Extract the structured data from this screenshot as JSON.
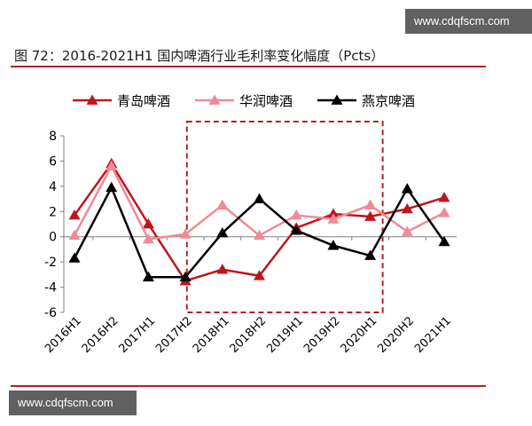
{
  "watermark_top": "www.cdqfscm.com",
  "watermark_bottom": "www.cdqfscm.com",
  "title": "图 72：2016-2021H1 国内啤酒行业毛利率变化幅度（Pcts）",
  "colors": {
    "series_1": "#c0141c",
    "series_2": "#f08a94",
    "series_3": "#000000",
    "accent_rule": "#b22222",
    "highlight_box": "#b22222"
  },
  "chart_data": {
    "type": "line",
    "title": "",
    "xlabel": "",
    "ylabel": "",
    "categories": [
      "2016H1",
      "2016H2",
      "2017H1",
      "2017H2",
      "2018H1",
      "2018H2",
      "2019H1",
      "2019H2",
      "2020H1",
      "2020H2",
      "2021H1"
    ],
    "ylim": [
      -6,
      8
    ],
    "yticks": [
      "8",
      "6",
      "4",
      "2",
      "0",
      "-2",
      "-4",
      "-6"
    ],
    "grid": false,
    "legend": "top",
    "highlight_range": [
      "2018H1",
      "2020H1"
    ],
    "series": [
      {
        "name": "青岛啤酒",
        "values": [
          1.7,
          5.8,
          1.0,
          -3.5,
          -2.6,
          -3.1,
          0.7,
          1.8,
          1.6,
          2.2,
          3.1
        ]
      },
      {
        "name": "华润啤酒",
        "values": [
          0.1,
          5.6,
          -0.2,
          0.2,
          2.5,
          0.1,
          1.7,
          1.4,
          2.5,
          0.4,
          1.9
        ]
      },
      {
        "name": "燕京啤酒",
        "values": [
          -1.7,
          3.9,
          -3.2,
          -3.2,
          0.3,
          3.0,
          0.5,
          -0.7,
          -1.5,
          3.8,
          -0.4
        ]
      }
    ]
  }
}
